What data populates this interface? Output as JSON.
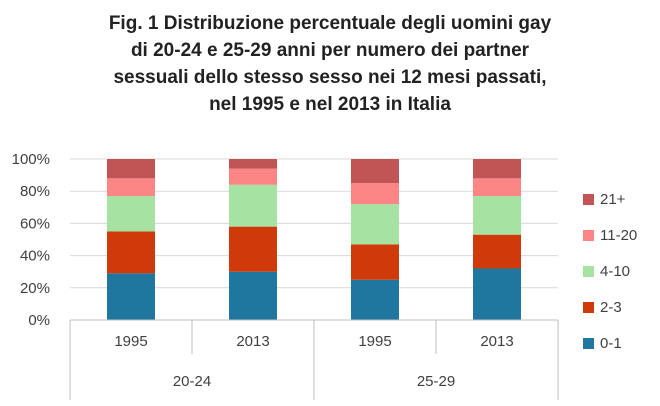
{
  "chart_data": {
    "type": "bar",
    "stacked": true,
    "title": "Fig. 1 Distribuzione percentuale degli uomini gay\ndi 20-24 e 25-29 anni per numero dei partner\nsessuali dello stesso sesso nei 12 mesi passati,\nnel 1995 e nel 2013 in Italia",
    "groups": [
      "20-24",
      "25-29"
    ],
    "categories": [
      "1995",
      "2013",
      "1995",
      "2013"
    ],
    "group_of_category": [
      0,
      0,
      1,
      1
    ],
    "y_ticks": [
      "0%",
      "20%",
      "40%",
      "60%",
      "80%",
      "100%"
    ],
    "ylim": [
      0,
      100
    ],
    "legend_position": "right",
    "series": [
      {
        "name": "0-1",
        "color": "#1F77A0",
        "values": [
          29,
          30,
          25,
          32
        ]
      },
      {
        "name": "2-3",
        "color": "#D03A0A",
        "values": [
          26,
          28,
          22,
          21
        ]
      },
      {
        "name": "4-10",
        "color": "#A6E3A3",
        "values": [
          22,
          26,
          25,
          24
        ]
      },
      {
        "name": "11-20",
        "color": "#FB8585",
        "values": [
          11,
          10,
          13,
          11
        ]
      },
      {
        "name": "21+",
        "color": "#C15454",
        "values": [
          12,
          6,
          15,
          12
        ]
      }
    ]
  }
}
